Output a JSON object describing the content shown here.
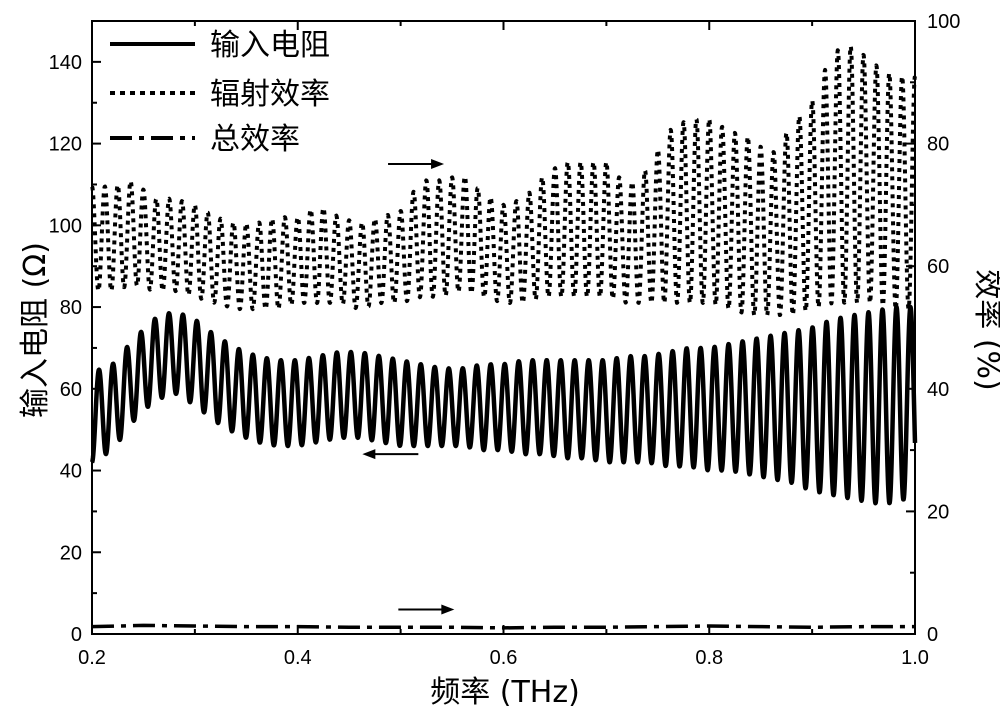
{
  "chart_data": {
    "type": "line",
    "xlabel": "频率 (THz)",
    "ylabel_left": "输入电阻 (Ω)",
    "ylabel_right": "效率 (%)",
    "xlim": [
      0.2,
      1.0
    ],
    "ylim_left": [
      0,
      150
    ],
    "ylim_right": [
      0,
      100
    ],
    "xticks": [
      "0.2",
      "0.4",
      "0.6",
      "0.8",
      "1.0"
    ],
    "yticks_left": [
      "0",
      "20",
      "40",
      "60",
      "80",
      "100",
      "120",
      "140"
    ],
    "yticks_right": [
      "0",
      "20",
      "40",
      "60",
      "80",
      "100"
    ],
    "grid": false,
    "legend_position": "top-left",
    "series": [
      {
        "name": "输入电阻",
        "axis": "left",
        "style": "solid",
        "oscillation_period_thz": 0.0136,
        "start_value": 35,
        "x": [
          0.2,
          0.22,
          0.24,
          0.26,
          0.28,
          0.3,
          0.32,
          0.34,
          0.36,
          0.38,
          0.4,
          0.42,
          0.44,
          0.46,
          0.48,
          0.5,
          0.52,
          0.54,
          0.56,
          0.58,
          0.6,
          0.62,
          0.64,
          0.66,
          0.68,
          0.7,
          0.72,
          0.74,
          0.76,
          0.78,
          0.8,
          0.82,
          0.84,
          0.86,
          0.88,
          0.9,
          0.92,
          0.94,
          0.96,
          0.98,
          1.0
        ],
        "upper": [
          64,
          66,
          72,
          77,
          79,
          77,
          73,
          70,
          68,
          67,
          67,
          68,
          69,
          69,
          68,
          67,
          66,
          65,
          65,
          66,
          66,
          67,
          67,
          67,
          67,
          67,
          68,
          68,
          69,
          70,
          70,
          71,
          72,
          73,
          74,
          75,
          77,
          78,
          79,
          80,
          80
        ],
        "lower": [
          42,
          45,
          52,
          57,
          59,
          56,
          52,
          49,
          47,
          46,
          46,
          47,
          48,
          48,
          47,
          46,
          46,
          46,
          46,
          45,
          45,
          44,
          44,
          43,
          43,
          42,
          42,
          42,
          41,
          41,
          40,
          40,
          39,
          38,
          37,
          35,
          34,
          33,
          32,
          32,
          34
        ]
      },
      {
        "name": "辐射效率",
        "axis": "right",
        "style": "dotted",
        "oscillation_period_thz": 0.0125,
        "start_value": 87,
        "x": [
          0.2,
          0.22,
          0.24,
          0.26,
          0.28,
          0.3,
          0.32,
          0.34,
          0.36,
          0.38,
          0.4,
          0.42,
          0.44,
          0.46,
          0.48,
          0.5,
          0.52,
          0.54,
          0.56,
          0.58,
          0.6,
          0.62,
          0.64,
          0.66,
          0.68,
          0.7,
          0.72,
          0.74,
          0.76,
          0.78,
          0.8,
          0.82,
          0.84,
          0.86,
          0.88,
          0.9,
          0.92,
          0.94,
          0.96,
          0.98,
          1.0
        ],
        "upper": [
          73,
          73,
          74,
          71,
          71,
          70,
          68,
          67,
          67,
          68,
          68,
          70,
          68,
          67,
          68,
          69,
          74,
          74,
          75,
          72,
          70,
          71,
          75,
          77,
          77,
          77,
          73,
          76,
          82,
          84,
          84,
          82,
          81,
          78,
          83,
          87,
          95,
          96,
          93,
          91,
          91
        ],
        "lower": [
          56,
          56,
          57,
          56,
          56,
          55,
          54,
          53,
          53,
          53,
          54,
          54,
          54,
          53,
          54,
          54,
          55,
          55,
          56,
          55,
          54,
          54,
          55,
          55,
          55,
          55,
          54,
          54,
          54,
          54,
          54,
          53,
          52,
          52,
          52,
          53,
          54,
          54,
          54,
          53,
          53
        ]
      },
      {
        "name": "总效率",
        "axis": "right",
        "style": "dash-dot",
        "x": [
          0.2,
          0.25,
          0.3,
          0.35,
          0.4,
          0.45,
          0.5,
          0.55,
          0.6,
          0.65,
          0.7,
          0.75,
          0.8,
          0.85,
          0.9,
          0.95,
          1.0
        ],
        "values": [
          1.2,
          1.4,
          1.3,
          1.2,
          1.2,
          1.1,
          1.1,
          1.1,
          1.0,
          1.1,
          1.1,
          1.2,
          1.3,
          1.2,
          1.1,
          1.2,
          1.2
        ]
      }
    ],
    "annotations": [
      {
        "type": "arrow",
        "direction": "right",
        "x": 0.515,
        "y_left": 115
      },
      {
        "type": "arrow",
        "direction": "left",
        "x": 0.49,
        "y_left": 44
      },
      {
        "type": "arrow",
        "direction": "right",
        "x": 0.525,
        "y_left": 6
      }
    ]
  }
}
